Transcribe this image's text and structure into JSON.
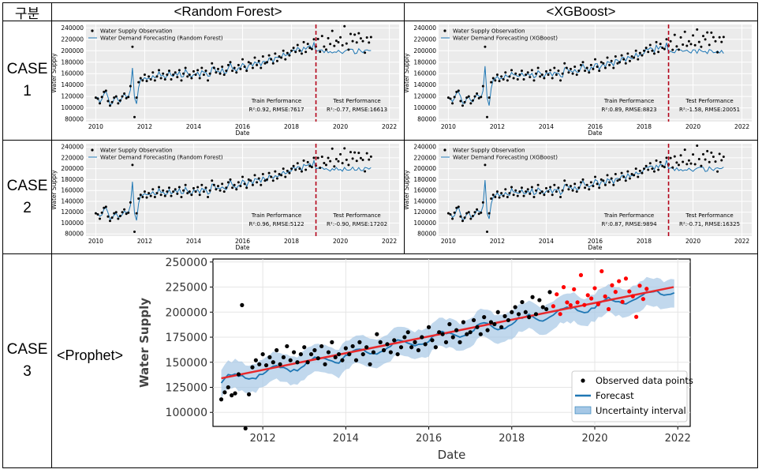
{
  "header": {
    "col0": "구분",
    "col1": "<Random  Forest>",
    "col2": "<XGBoost>"
  },
  "cases": [
    {
      "label_top": "CASE",
      "label_num": "1"
    },
    {
      "label_top": "CASE",
      "label_num": "2"
    },
    {
      "label_top": "CASE",
      "label_num": "3"
    }
  ],
  "prophet_label": "<Prophet>",
  "colors": {
    "forecast": "#1f77b4",
    "trend": "#e8282b",
    "observed": "#000000",
    "test_obs": "#ff0000",
    "split_line": "#b40019",
    "band": "#a6c8e6"
  },
  "chart_data": [
    {
      "id": "case1-rf",
      "type": "line",
      "legend": [
        "Water Supply Observation",
        "Water Demand Forecasting (Random Forest)"
      ],
      "xlabel": "Date",
      "ylabel": "Water Supply",
      "xticks": [
        "2010",
        "2012",
        "2014",
        "2016",
        "2018",
        "2020",
        "2022"
      ],
      "yticks": [
        "80000",
        "100000",
        "120000",
        "140000",
        "160000",
        "180000",
        "200000",
        "220000",
        "240000"
      ],
      "xlim": [
        2009.6,
        2022.4
      ],
      "ylim": [
        76000,
        246000
      ],
      "split": 2019.0,
      "train_title": "Train Performance",
      "train_metrics": "R²:0.92, RMSE:7617",
      "test_title": "Test Performance",
      "test_metrics": "R²:-0.77, RMSE:16613",
      "test_offset": 12,
      "test_amp": 1
    },
    {
      "id": "case1-xgb",
      "type": "line",
      "legend": [
        "Water Supply Observation",
        "Water Demand Forecasting (XGBoost)"
      ],
      "xlabel": "Date",
      "ylabel": "Water Supply",
      "xticks": [
        "2010",
        "2012",
        "2014",
        "2016",
        "2018",
        "2020",
        "2022"
      ],
      "yticks": [
        "80000",
        "100000",
        "120000",
        "140000",
        "160000",
        "180000",
        "200000",
        "220000",
        "240000"
      ],
      "xlim": [
        2009.6,
        2022.4
      ],
      "ylim": [
        76000,
        246000
      ],
      "split": 2019.0,
      "train_title": "Train Performance",
      "train_metrics": "R²:0.89, RMSE:8823",
      "test_title": "Test Performance",
      "test_metrics": "R²:-1.58, RMSE:20051",
      "test_offset": 15,
      "test_amp": 1
    },
    {
      "id": "case2-rf",
      "type": "line",
      "legend": [
        "Water Supply Observation",
        "Water Demand Forecasting (Random Forest)"
      ],
      "xlabel": "Date",
      "ylabel": "Water Supply",
      "xticks": [
        "2010",
        "2012",
        "2014",
        "2016",
        "2018",
        "2020",
        "2022"
      ],
      "yticks": [
        "80000",
        "100000",
        "120000",
        "140000",
        "160000",
        "180000",
        "200000",
        "220000",
        "240000"
      ],
      "xlim": [
        2009.6,
        2022.4
      ],
      "ylim": [
        76000,
        246000
      ],
      "split": 2019.0,
      "train_title": "Train Performance",
      "train_metrics": "R²:0.96, RMSE:5122",
      "test_title": "Test Performance",
      "test_metrics": "R²:-0.90, RMSE:17202",
      "test_offset": 13,
      "test_amp": 1
    },
    {
      "id": "case2-xgb",
      "type": "line",
      "legend": [
        "Water Supply Observation",
        "Water Demand Forecasting (XGBoost)"
      ],
      "xlabel": "Date",
      "ylabel": "Water Supply",
      "xticks": [
        "2010",
        "2012",
        "2014",
        "2016",
        "2018",
        "2020",
        "2022"
      ],
      "yticks": [
        "80000",
        "100000",
        "120000",
        "140000",
        "160000",
        "180000",
        "200000",
        "220000",
        "240000"
      ],
      "xlim": [
        2009.6,
        2022.4
      ],
      "ylim": [
        76000,
        246000
      ],
      "split": 2019.0,
      "train_title": "Train Performance",
      "train_metrics": "R²:0.87, RMSE:9894",
      "test_title": "Test Performance",
      "test_metrics": "R²:-0.71, RMSE:16325",
      "test_offset": 10,
      "test_amp": 1
    },
    {
      "id": "case3-prophet",
      "type": "line",
      "legend": [
        "Observed data points",
        "Forecast",
        "Uncertainty interval"
      ],
      "xlabel": "Date",
      "ylabel": "Water Supply",
      "xticks": [
        "2012",
        "2014",
        "2016",
        "2018",
        "2020",
        "2022"
      ],
      "yticks": [
        "100000",
        "125000",
        "150000",
        "175000",
        "200000",
        "225000",
        "250000"
      ],
      "xlim": [
        2010.8,
        2022.3
      ],
      "ylim": [
        86000,
        253000
      ],
      "trend": {
        "x": [
          2011.0,
          2021.9
        ],
        "y": [
          134000,
          225000
        ]
      },
      "band_halfwidth": 14000
    }
  ],
  "observations": {
    "start_year": 2010.0,
    "monthly_values": [
      118000,
      116000,
      108000,
      119000,
      128000,
      130000,
      112000,
      104000,
      110000,
      118000,
      120000,
      108000,
      113000,
      120000,
      125000,
      117000,
      119000,
      138000,
      207000,
      84000,
      118000,
      145000,
      152000,
      148000,
      158000,
      147000,
      155000,
      150000,
      162000,
      148000,
      155000,
      166000,
      152000,
      160000,
      150000,
      158000,
      165000,
      150000,
      158000,
      162000,
      154000,
      166000,
      148000,
      160000,
      170000,
      155000,
      158000,
      152000,
      164000,
      158000,
      166000,
      152000,
      170000,
      158000,
      165000,
      148000,
      160000,
      178000,
      170000,
      162000,
      168000,
      160000,
      172000,
      158000,
      165000,
      175000,
      180000,
      165000,
      170000,
      162000,
      175000,
      168000,
      185000,
      172000,
      165000,
      180000,
      178000,
      170000,
      188000,
      175000,
      182000,
      170000,
      190000,
      178000,
      180000,
      192000,
      185000,
      178000,
      195000,
      182000,
      190000,
      188000,
      200000,
      185000,
      196000,
      192000,
      200000,
      205000,
      198000,
      210000,
      200000,
      195000,
      215000,
      198000,
      212000,
      205000,
      203000,
      220000,
      206000,
      218000,
      200000,
      225000,
      210000,
      205000,
      222000,
      212000,
      235000,
      206000,
      218000,
      212000,
      225000,
      208000,
      240000,
      215000,
      205000,
      228000,
      218000,
      230000,
      212000,
      232000,
      222000,
      215000,
      195000,
      226000,
      214000,
      222000
    ]
  }
}
